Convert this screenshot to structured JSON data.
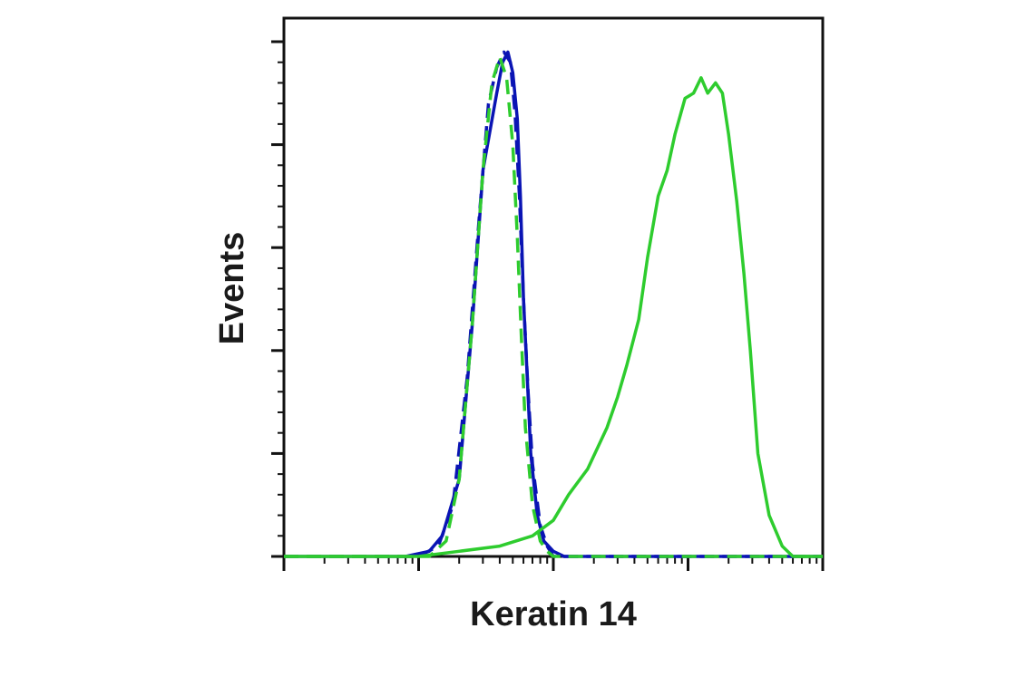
{
  "chart_data": {
    "type": "line",
    "title": "",
    "xlabel": "Keratin 14",
    "ylabel": "Events",
    "x_scale": "log",
    "xlim": [
      10,
      100000
    ],
    "ylim": [
      0,
      100
    ],
    "grid": false,
    "legend": "none",
    "series": [
      {
        "line_style": "solid",
        "color": "#0a14b4",
        "x": [
          10,
          80,
          120,
          150,
          200,
          250,
          300,
          380,
          420,
          460,
          500,
          540,
          570,
          600,
          640,
          680,
          760,
          850,
          1000,
          1200,
          2000,
          10000,
          100000
        ],
        "y": [
          0,
          0,
          1,
          4,
          15,
          45,
          75,
          90,
          96,
          98,
          94,
          85,
          70,
          50,
          35,
          20,
          8,
          3,
          1,
          0,
          0,
          0,
          0
        ]
      },
      {
        "line_style": "dashed",
        "color": "#0a14b4",
        "x": [
          10,
          100,
          140,
          180,
          230,
          280,
          330,
          380,
          430,
          480,
          520,
          560,
          600,
          650,
          700,
          800,
          900,
          1000,
          1300,
          10000,
          100000
        ],
        "y": [
          0,
          0,
          2,
          10,
          35,
          65,
          88,
          95,
          98,
          96,
          86,
          70,
          50,
          32,
          18,
          6,
          2,
          0,
          0,
          0,
          0
        ]
      },
      {
        "line_style": "dashed",
        "color": "#2ecc2e",
        "x": [
          10,
          120,
          160,
          200,
          250,
          300,
          350,
          400,
          450,
          500,
          540,
          580,
          620,
          700,
          800,
          900,
          1000,
          1200,
          10000,
          100000
        ],
        "y": [
          0,
          0,
          3,
          15,
          45,
          75,
          92,
          97,
          93,
          80,
          62,
          42,
          25,
          10,
          3,
          1,
          0,
          0,
          0,
          0
        ]
      },
      {
        "line_style": "solid",
        "color": "#2ecc2e",
        "x": [
          10,
          100,
          200,
          400,
          700,
          1000,
          1300,
          1800,
          2500,
          3000,
          3500,
          4300,
          5000,
          6000,
          7000,
          8000,
          9500,
          11000,
          12500,
          14000,
          16000,
          18000,
          20000,
          23000,
          26000,
          29000,
          33000,
          40000,
          50000,
          60000,
          70000,
          100000
        ],
        "y": [
          0,
          0,
          1,
          2,
          4,
          7,
          12,
          17,
          25,
          31,
          37,
          46,
          58,
          70,
          75,
          82,
          89,
          90,
          93,
          90,
          92,
          90,
          82,
          69,
          55,
          40,
          20,
          8,
          2,
          0,
          0,
          0
        ]
      }
    ]
  }
}
